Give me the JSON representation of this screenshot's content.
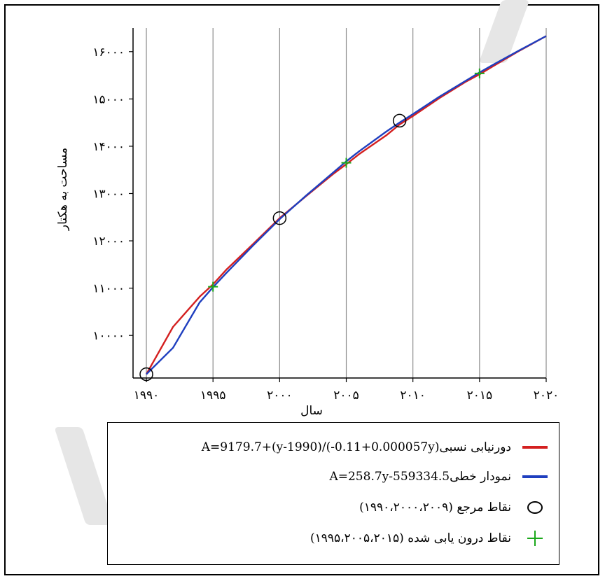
{
  "chart_data": {
    "type": "line",
    "xlabel": "سال",
    "ylabel": "مساحت به هکتار",
    "xlim": [
      1989,
      2020
    ],
    "ylim": [
      9100,
      16500
    ],
    "x_ticks": [
      1990,
      1995,
      2000,
      2005,
      2010,
      2015,
      2020
    ],
    "x_tick_labels": [
      "۱۹۹۰",
      "۱۹۹۵",
      "۲۰۰۰",
      "۲۰۰۵",
      "۲۰۱۰",
      "۲۰۱۵",
      "۲۰۲۰"
    ],
    "y_ticks": [
      10000,
      11000,
      12000,
      13000,
      14000,
      15000,
      16000
    ],
    "y_tick_labels": [
      "۱۰۰۰۰",
      "۱۱۰۰۰",
      "۱۲۰۰۰",
      "۱۳۰۰۰",
      "۱۴۰۰۰",
      "۱۵۰۰۰",
      "۱۶۰۰۰"
    ],
    "grid": "vertical",
    "series": [
      {
        "name": "A=9179.7+(y-1990)/(-0.11+0.000057y) دورنیابی نسبی",
        "color": "#d42020",
        "x": [
          1990,
          1992,
          1994,
          1995,
          1996,
          1998,
          2000,
          2002,
          2004,
          2005,
          2006,
          2008,
          2009,
          2010,
          2012,
          2014,
          2015,
          2016,
          2018,
          2020
        ],
        "y": [
          9180,
          10180,
          10820,
          11080,
          11390,
          11930,
          12480,
          12950,
          13410,
          13620,
          13840,
          14230,
          14460,
          14640,
          15020,
          15370,
          15520,
          15690,
          16020,
          16330
        ]
      },
      {
        "name": "A=258.7y-559334.5 نمودار خطی",
        "color": "#1f3fbf",
        "x": [
          1990,
          1992,
          1994,
          1995,
          1996,
          1998,
          2000,
          2002,
          2004,
          2005,
          2006,
          2008,
          2009,
          2010,
          2012,
          2014,
          2015,
          2016,
          2018,
          2020
        ],
        "y": [
          9180,
          9740,
          10700,
          11020,
          11320,
          11900,
          12460,
          12960,
          13440,
          13680,
          13900,
          14310,
          14500,
          14680,
          15050,
          15390,
          15560,
          15720,
          16030,
          16330
        ]
      }
    ],
    "reference_points": {
      "name": "نقاط مرجع (۱۹۹۰،۲۰۰۰،۲۰۰۹)",
      "x": [
        1990,
        2000,
        2009
      ],
      "y": [
        9180,
        12480,
        14540
      ]
    },
    "interpolated_points": {
      "name": "نقاط درون یابی شده (۱۹۹۵،۲۰۰۵،۲۰۱۵)",
      "color": "#1aa81a",
      "x": [
        1995,
        2005,
        2015
      ],
      "y": [
        11030,
        13650,
        15540
      ]
    }
  },
  "legend": {
    "items": [
      {
        "text": "A=9179.7+(y-1990)/(-0.11+0.000057y)دورنیابی نسبی",
        "symbol": "line-red"
      },
      {
        "text": "A=258.7y-559334.5نمودار خطی",
        "symbol": "line-blue"
      },
      {
        "text": "نقاط مرجع (۱۹۹۰،۲۰۰۰،۲۰۰۹)",
        "symbol": "circle"
      },
      {
        "text": "نقاط درون یابی شده (۱۹۹۵،۲۰۰۵،۲۰۱۵)",
        "symbol": "plus"
      }
    ]
  }
}
